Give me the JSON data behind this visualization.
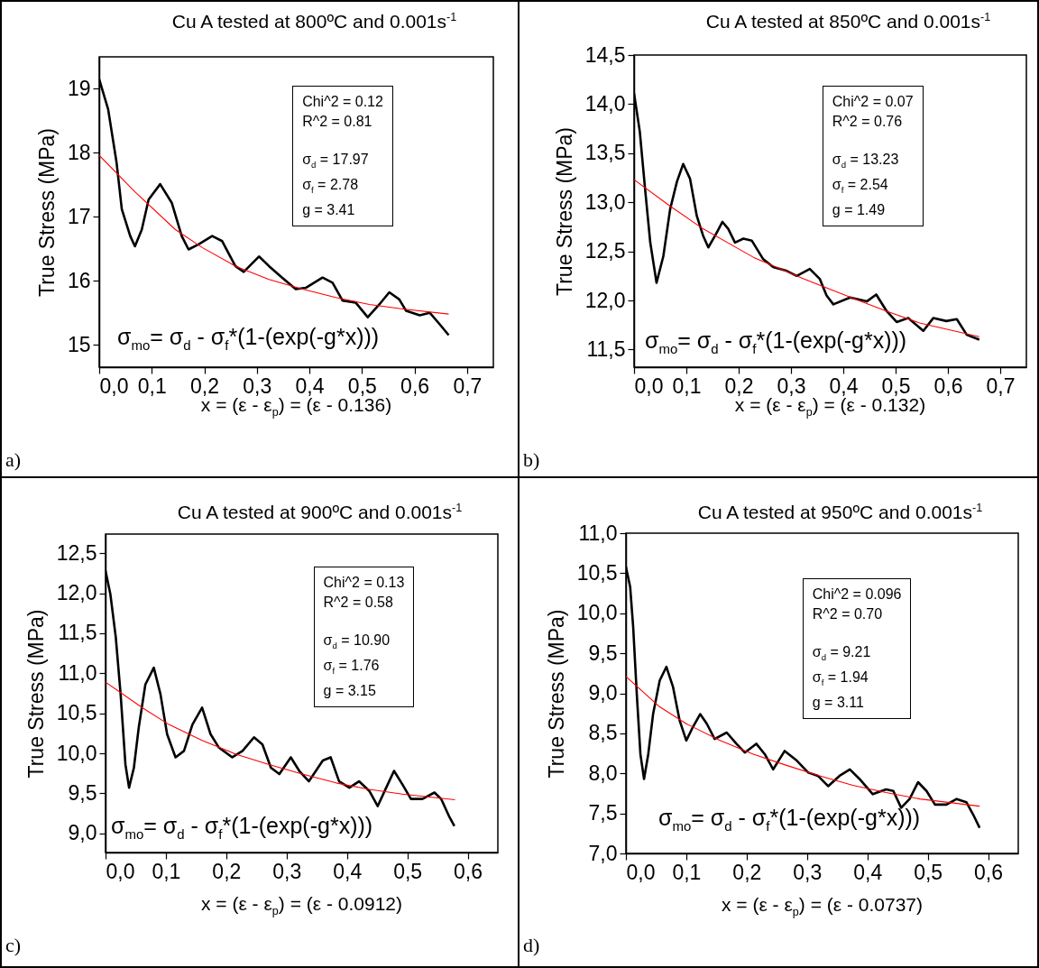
{
  "chart_data": [
    {
      "type": "line",
      "title": "Cu A tested at 800ºC and 0.001s$^{-1}$",
      "xlabel": "x = (ε - ε$_{p}$) = (ε - 0.136)",
      "ylabel": "True Stress (MPa)",
      "xlim": [
        0,
        0.75
      ],
      "ylim": [
        14.65,
        19.5
      ],
      "xticks": [
        {
          "value": 0,
          "label": "0,0"
        },
        {
          "value": 0.1,
          "label": "0,1"
        },
        {
          "value": 0.2,
          "label": "0,2"
        },
        {
          "value": 0.3,
          "label": "0,3"
        },
        {
          "value": 0.4,
          "label": "0,4"
        },
        {
          "value": 0.5,
          "label": "0,5"
        },
        {
          "value": 0.6,
          "label": "0,6"
        },
        {
          "value": 0.7,
          "label": "0,7"
        }
      ],
      "yticks": [
        15,
        16,
        17,
        18,
        19
      ],
      "annotations": [
        "Chi^2 = 0.12",
        "R^2 = 0.81",
        "σ$_{d}$ = 17.97",
        "σ$_{f}$ = 2.78",
        "g = 3.41",
        "σ$_{mo}$= σ$_{d}$ - σ$_{f}$*(1-(exp(-g*x)))",
        "a)"
      ],
      "series": [
        {
          "color": "#000000",
          "x": [
            0,
            0.017,
            0.033,
            0.043,
            0.059,
            0.068,
            0.081,
            0.094,
            0.116,
            0.138,
            0.157,
            0.17,
            0.189,
            0.215,
            0.234,
            0.259,
            0.275,
            0.304,
            0.323,
            0.348,
            0.374,
            0.393,
            0.425,
            0.444,
            0.463,
            0.488,
            0.511,
            0.533,
            0.552,
            0.571,
            0.584,
            0.61,
            0.629,
            0.648,
            0.665
          ],
          "values": [
            19.15,
            18.68,
            17.85,
            17.12,
            16.7,
            16.54,
            16.8,
            17.27,
            17.51,
            17.22,
            16.7,
            16.49,
            16.57,
            16.7,
            16.62,
            16.23,
            16.14,
            16.38,
            16.23,
            16.05,
            15.87,
            15.89,
            16.05,
            15.97,
            15.69,
            15.66,
            15.43,
            15.63,
            15.82,
            15.71,
            15.53,
            15.46,
            15.5,
            15.32,
            15.15
          ]
        },
        {
          "color": "#ff0000",
          "x": [
            0,
            0.068,
            0.145,
            0.196,
            0.259,
            0.323,
            0.387,
            0.45,
            0.514,
            0.578,
            0.665
          ],
          "values": [
            17.96,
            17.39,
            16.8,
            16.52,
            16.23,
            16.02,
            15.87,
            15.74,
            15.63,
            15.56,
            15.48
          ]
        }
      ]
    },
    {
      "type": "line",
      "title": "Cu A tested at 850ºC and 0.001s$^{-1}$",
      "xlabel": "x = (ε - ε$_{p}$) = (ε - 0.132)",
      "ylabel": "True Stress (MPa)",
      "xlim": [
        0,
        0.75
      ],
      "ylim": [
        11.32,
        14.5
      ],
      "xticks": [
        {
          "value": 0,
          "label": "0,0"
        },
        {
          "value": 0.1,
          "label": "0,1"
        },
        {
          "value": 0.2,
          "label": "0,2"
        },
        {
          "value": 0.3,
          "label": "0,3"
        },
        {
          "value": 0.4,
          "label": "0,4"
        },
        {
          "value": 0.5,
          "label": "0,5"
        },
        {
          "value": 0.6,
          "label": "0,6"
        },
        {
          "value": 0.7,
          "label": "0,7"
        }
      ],
      "yticks": [
        {
          "value": 11.5,
          "label": "11,5"
        },
        {
          "value": 12,
          "label": "12,0"
        },
        {
          "value": 12.5,
          "label": "12,5"
        },
        {
          "value": 13,
          "label": "13,0"
        },
        {
          "value": 13.5,
          "label": "13,5"
        },
        {
          "value": 14,
          "label": "14,0"
        },
        {
          "value": 14.5,
          "label": "14,5"
        }
      ],
      "annotations": [
        "Chi^2 = 0.07",
        "R^2 = 0.76",
        "σ$_{d}$ = 13.23",
        "σ$_{f}$ = 2.54",
        "g = 1.49",
        "σ$_{mo}$= σ$_{d}$ - σ$_{f}$*(1-(exp(-g*x)))",
        "b)"
      ],
      "series": [
        {
          "color": "#000000",
          "x": [
            0,
            0.011,
            0.021,
            0.031,
            0.043,
            0.056,
            0.069,
            0.082,
            0.094,
            0.107,
            0.12,
            0.132,
            0.142,
            0.155,
            0.169,
            0.18,
            0.193,
            0.209,
            0.225,
            0.247,
            0.266,
            0.292,
            0.311,
            0.336,
            0.355,
            0.368,
            0.381,
            0.413,
            0.445,
            0.463,
            0.483,
            0.502,
            0.524,
            0.553,
            0.572,
            0.597,
            0.617,
            0.636,
            0.66
          ],
          "values": [
            14.11,
            13.72,
            13.14,
            12.59,
            12.18,
            12.45,
            12.93,
            13.21,
            13.39,
            13.24,
            12.86,
            12.66,
            12.54,
            12.66,
            12.8,
            12.73,
            12.59,
            12.63,
            12.61,
            12.42,
            12.34,
            12.3,
            12.25,
            12.32,
            12.22,
            12.05,
            11.96,
            12.03,
            11.99,
            12.06,
            11.89,
            11.78,
            11.82,
            11.69,
            11.82,
            11.79,
            11.81,
            11.65,
            11.6
          ]
        },
        {
          "color": "#ff0000",
          "x": [
            0,
            0.069,
            0.132,
            0.228,
            0.324,
            0.419,
            0.483,
            0.546,
            0.66
          ],
          "values": [
            13.23,
            12.96,
            12.73,
            12.44,
            12.22,
            12.02,
            11.89,
            11.77,
            11.63
          ]
        }
      ]
    },
    {
      "type": "line",
      "title": "Cu A tested at 900ºC and 0.001s$^{-1}$",
      "xlabel": "x = (ε - ε$_{p}$) = (ε - 0.0912)",
      "ylabel": "True Stress (MPa)",
      "xlim": [
        0,
        0.65
      ],
      "ylim": [
        8.76,
        12.74
      ],
      "xticks": [
        {
          "value": 0,
          "label": "0,0"
        },
        {
          "value": 0.1,
          "label": "0,1"
        },
        {
          "value": 0.2,
          "label": "0,2"
        },
        {
          "value": 0.3,
          "label": "0,3"
        },
        {
          "value": 0.4,
          "label": "0,4"
        },
        {
          "value": 0.5,
          "label": "0,5"
        },
        {
          "value": 0.6,
          "label": "0,6"
        }
      ],
      "yticks": [
        {
          "value": 9,
          "label": "9,0"
        },
        {
          "value": 9.5,
          "label": "9,5"
        },
        {
          "value": 10,
          "label": "10,0"
        },
        {
          "value": 10.5,
          "label": "10,5"
        },
        {
          "value": 11,
          "label": "11,0"
        },
        {
          "value": 11.5,
          "label": "11,5"
        },
        {
          "value": 12,
          "label": "12,0"
        },
        {
          "value": 12.5,
          "label": "12,5"
        }
      ],
      "annotations": [
        "Chi^2 = 0.13",
        "R^2 = 0.58",
        "σ$_{d}$ = 10.90",
        "σ$_{f}$ = 1.76",
        "g = 3.15",
        "σ$_{mo}$= σ$_{d}$ - σ$_{f}$*(1-(exp(-g*x)))",
        "c)"
      ],
      "series": [
        {
          "color": "#000000",
          "x": [
            0,
            0.008,
            0.017,
            0.025,
            0.033,
            0.039,
            0.047,
            0.055,
            0.066,
            0.08,
            0.091,
            0.102,
            0.116,
            0.13,
            0.144,
            0.16,
            0.174,
            0.188,
            0.21,
            0.227,
            0.246,
            0.26,
            0.274,
            0.288,
            0.307,
            0.321,
            0.337,
            0.36,
            0.373,
            0.387,
            0.404,
            0.42,
            0.437,
            0.451,
            0.465,
            0.478,
            0.492,
            0.506,
            0.525,
            0.545,
            0.556,
            0.57,
            0.578
          ],
          "values": [
            12.28,
            11.99,
            11.45,
            10.74,
            9.86,
            9.57,
            9.82,
            10.32,
            10.86,
            11.07,
            10.74,
            10.24,
            9.95,
            10.03,
            10.36,
            10.57,
            10.24,
            10.07,
            9.95,
            10.03,
            10.2,
            10.11,
            9.82,
            9.74,
            9.95,
            9.78,
            9.65,
            9.91,
            9.95,
            9.65,
            9.57,
            9.65,
            9.53,
            9.34,
            9.57,
            9.78,
            9.61,
            9.43,
            9.43,
            9.51,
            9.43,
            9.2,
            9.09
          ]
        },
        {
          "color": "#ff0000",
          "x": [
            0,
            0.061,
            0.105,
            0.16,
            0.216,
            0.271,
            0.326,
            0.382,
            0.437,
            0.492,
            0.579
          ],
          "values": [
            10.89,
            10.57,
            10.36,
            10.16,
            9.99,
            9.86,
            9.74,
            9.63,
            9.55,
            9.49,
            9.42
          ]
        }
      ]
    },
    {
      "type": "line",
      "title": "Cu A tested at 950ºC and 0.001s$^{-1}$",
      "xlabel": "x = (ε - ε$_{p}$) = (ε - 0.0737)",
      "ylabel": "True Stress (MPa)",
      "xlim": [
        0,
        0.65
      ],
      "ylim": [
        7,
        11
      ],
      "xticks": [
        {
          "value": 0,
          "label": "0,0"
        },
        {
          "value": 0.1,
          "label": "0,1"
        },
        {
          "value": 0.2,
          "label": "0,2"
        },
        {
          "value": 0.3,
          "label": "0,3"
        },
        {
          "value": 0.4,
          "label": "0,4"
        },
        {
          "value": 0.5,
          "label": "0,5"
        },
        {
          "value": 0.6,
          "label": "0,6"
        }
      ],
      "yticks": [
        {
          "value": 7,
          "label": "7,0"
        },
        {
          "value": 7.5,
          "label": "7,5"
        },
        {
          "value": 8,
          "label": "8,0"
        },
        {
          "value": 8.5,
          "label": "8,5"
        },
        {
          "value": 9,
          "label": "9,0"
        },
        {
          "value": 9.5,
          "label": "9,5"
        },
        {
          "value": 10,
          "label": "10,0"
        },
        {
          "value": 10.5,
          "label": "10,5"
        },
        {
          "value": 11,
          "label": "11,0"
        }
      ],
      "annotations": [
        "Chi^2 = 0.096",
        "R^2 = 0.70",
        "σ$_{d}$ = 9.21",
        "σ$_{f}$ = 1.94",
        "g = 3.11",
        "σ$_{mo}$= σ$_{d}$ - σ$_{f}$*(1-(exp(-g*x)))",
        "d)"
      ],
      "series": [
        {
          "color": "#000000",
          "x": [
            0,
            0.007,
            0.012,
            0.018,
            0.024,
            0.03,
            0.037,
            0.045,
            0.056,
            0.067,
            0.078,
            0.089,
            0.1,
            0.111,
            0.123,
            0.134,
            0.147,
            0.167,
            0.183,
            0.197,
            0.216,
            0.23,
            0.244,
            0.263,
            0.283,
            0.302,
            0.318,
            0.335,
            0.354,
            0.371,
            0.387,
            0.409,
            0.431,
            0.443,
            0.456,
            0.47,
            0.484,
            0.498,
            0.512,
            0.531,
            0.548,
            0.564,
            0.575,
            0.586
          ],
          "values": [
            10.58,
            10.33,
            9.83,
            8.99,
            8.24,
            7.93,
            8.24,
            8.74,
            9.16,
            9.33,
            9.08,
            8.66,
            8.41,
            8.58,
            8.74,
            8.62,
            8.43,
            8.51,
            8.37,
            8.26,
            8.37,
            8.24,
            8.05,
            8.28,
            8.16,
            8.01,
            7.97,
            7.84,
            7.97,
            8.05,
            7.93,
            7.74,
            7.8,
            7.78,
            7.57,
            7.68,
            7.89,
            7.78,
            7.61,
            7.61,
            7.68,
            7.64,
            7.49,
            7.32
          ]
        },
        {
          "color": "#ff0000",
          "x": [
            0,
            0.056,
            0.1,
            0.156,
            0.211,
            0.266,
            0.321,
            0.376,
            0.431,
            0.487,
            0.586
          ],
          "values": [
            9.21,
            8.83,
            8.62,
            8.41,
            8.24,
            8.1,
            7.97,
            7.85,
            7.76,
            7.68,
            7.59
          ]
        }
      ]
    }
  ]
}
